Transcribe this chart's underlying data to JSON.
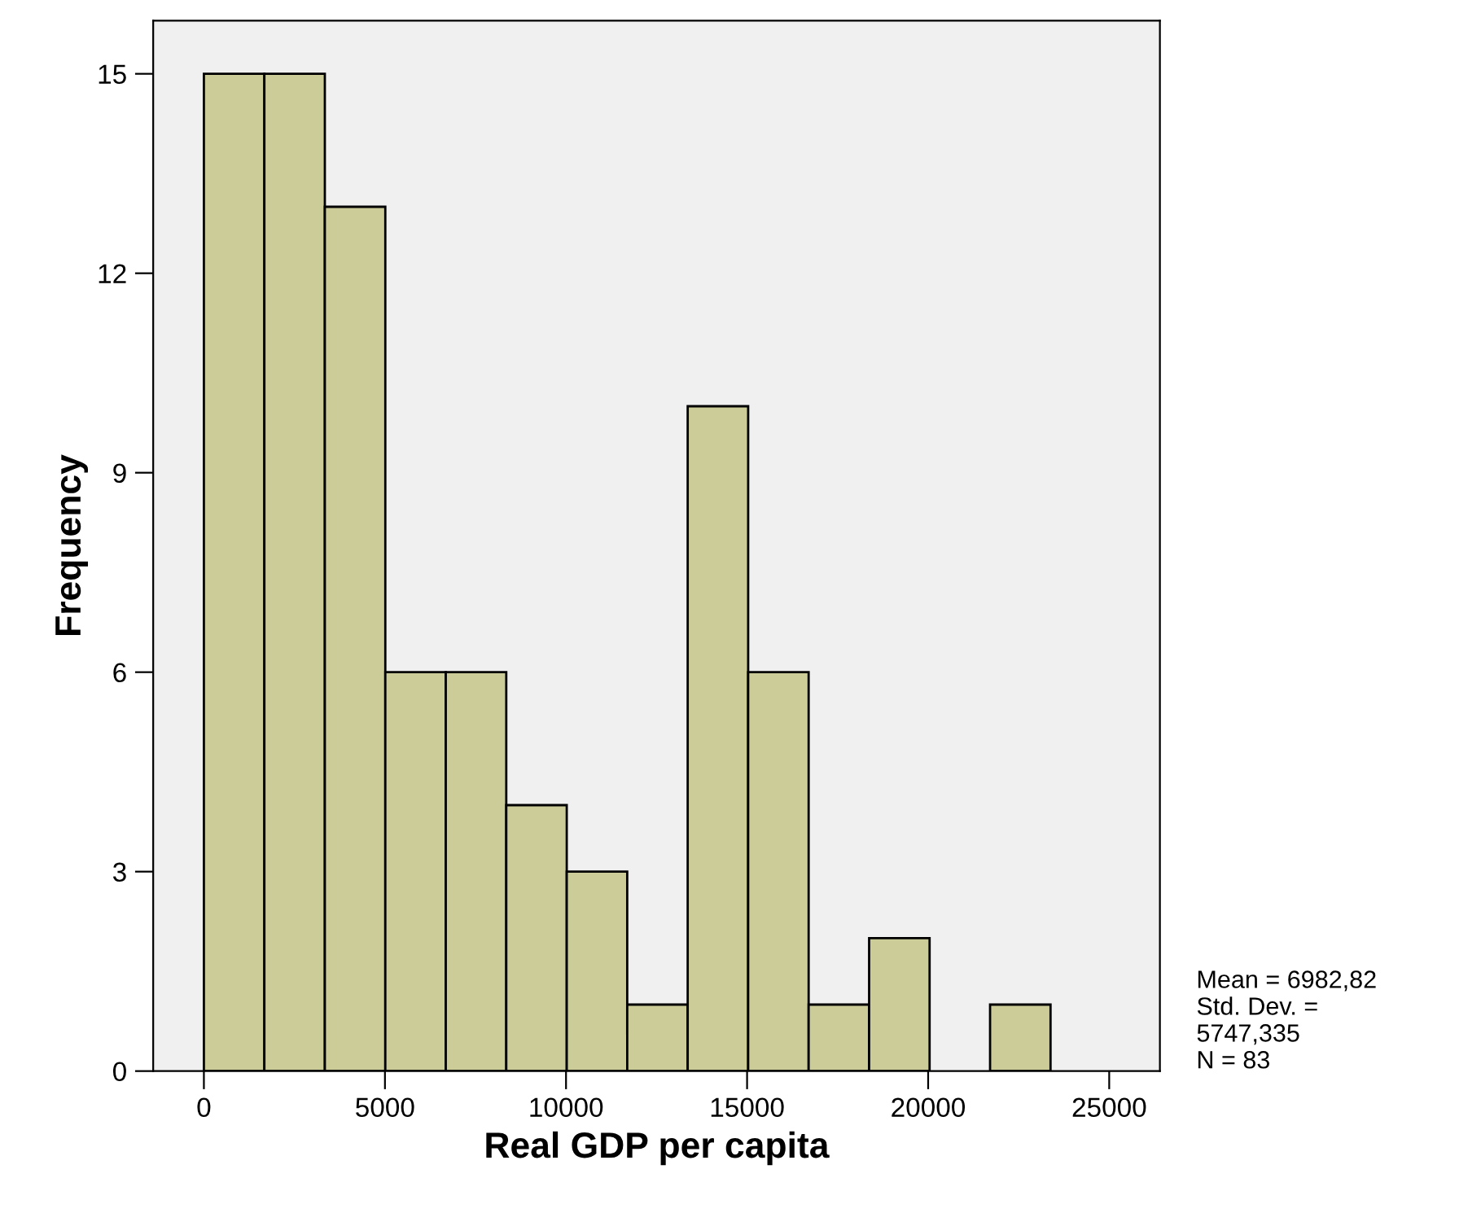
{
  "chart_data": {
    "type": "histogram",
    "xlabel": "Real GDP per capita",
    "ylabel": "Frequency",
    "bins": [
      0,
      1670,
      3340,
      5010,
      6680,
      8350,
      10020,
      11690,
      13360,
      15030,
      16700,
      18370,
      20040,
      21710,
      23380
    ],
    "values": [
      15,
      15,
      13,
      6,
      6,
      4,
      3,
      1,
      10,
      6,
      1,
      2,
      0,
      1
    ],
    "color": "#cccc99",
    "xlim": [
      -1400,
      26400
    ],
    "xticks": [
      0,
      5000,
      10000,
      15000,
      20000,
      25000
    ],
    "ylim": [
      0,
      15.8
    ],
    "yticks": [
      0,
      3,
      6,
      9,
      12,
      15
    ],
    "grid": false,
    "annotations": [
      "Mean = 6982,82\nStd. Dev. =\n5747,335\nN = 83"
    ]
  }
}
